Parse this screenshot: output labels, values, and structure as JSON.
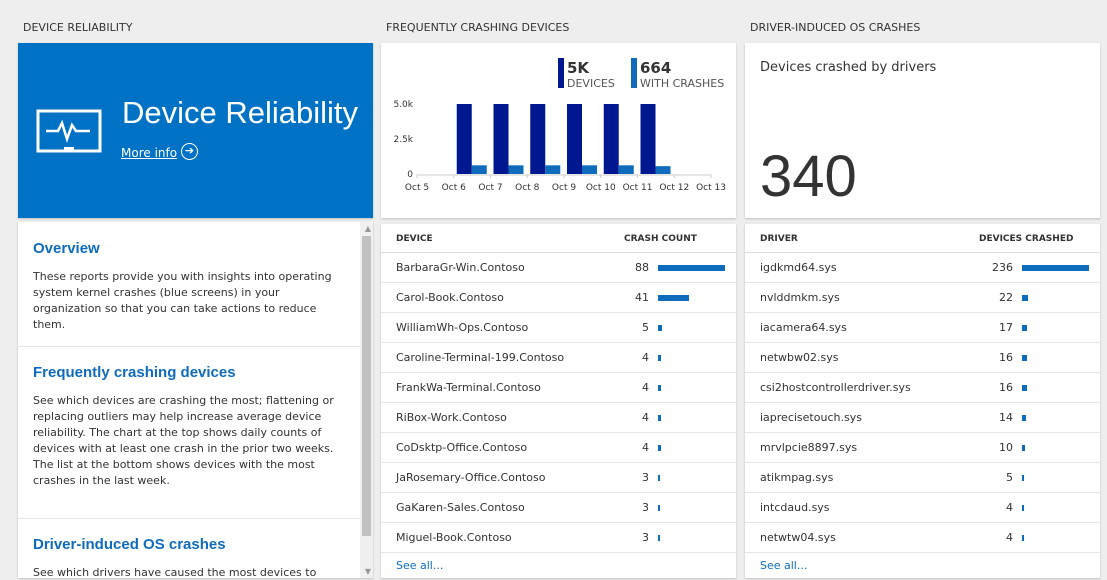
{
  "sections": {
    "reliability": "DEVICE RELIABILITY",
    "frequent": "FREQUENTLY CRASHING DEVICES",
    "driver": "DRIVER-INDUCED OS CRASHES"
  },
  "hero": {
    "title": "Device Reliability",
    "more_info": "More info",
    "icon": "monitor-pulse-icon",
    "color": "#0072c6"
  },
  "overview": {
    "sections": [
      {
        "title": "Overview",
        "text": "These reports provide you with insights into operating system kernel crashes (blue screens) in your organization so that you can take actions to reduce them."
      },
      {
        "title": "Frequently crashing devices",
        "text": "See which devices are crashing the most; flattening or replacing outliers may help increase average device reliability. The chart at the top shows daily counts of devices with at least one crash in the prior two weeks. The list at the bottom shows devices with the most crashes in the last week."
      },
      {
        "title": "Driver-induced OS crashes",
        "text": "See which drivers have caused the most devices to crash in"
      }
    ]
  },
  "chart_data": {
    "type": "bar",
    "categories": [
      "Oct 5",
      "Oct 6",
      "Oct 7",
      "Oct 8",
      "Oct 9",
      "Oct 10",
      "Oct 11",
      "Oct 12",
      "Oct 13"
    ],
    "y_ticks": [
      "0",
      "2.5k",
      "5.0k"
    ],
    "ylim": [
      0,
      5000
    ],
    "legend": [
      {
        "value": "5K",
        "label": "DEVICES",
        "color": "#00188f"
      },
      {
        "value": "664",
        "label": "WITH CRASHES",
        "color": "#0f6cbd"
      }
    ],
    "series": [
      {
        "name": "DEVICES",
        "color": "#00188f",
        "values": [
          0,
          5000,
          5000,
          5000,
          5000,
          5000,
          5000,
          0,
          0
        ]
      },
      {
        "name": "WITH CRASHES",
        "color": "#0f6cbd",
        "values": [
          0,
          620,
          620,
          620,
          620,
          620,
          560,
          0,
          0
        ]
      }
    ]
  },
  "drivers_card": {
    "label": "Devices crashed by drivers",
    "value": "340"
  },
  "devices_table": {
    "col1": "DEVICE",
    "col2": "CRASH COUNT",
    "see_all": "See all...",
    "rows": [
      {
        "name": "BarbaraGr-Win.Contoso",
        "count": 88
      },
      {
        "name": "Carol-Book.Contoso",
        "count": 41
      },
      {
        "name": "WilliamWh-Ops.Contoso",
        "count": 5
      },
      {
        "name": "Caroline-Terminal-199.Contoso",
        "count": 4
      },
      {
        "name": "FrankWa-Terminal.Contoso",
        "count": 4
      },
      {
        "name": "RiBox-Work.Contoso",
        "count": 4
      },
      {
        "name": "CoDsktp-Office.Contoso",
        "count": 4
      },
      {
        "name": "JaRosemary-Office.Contoso",
        "count": 3
      },
      {
        "name": "GaKaren-Sales.Contoso",
        "count": 3
      },
      {
        "name": "Miguel-Book.Contoso",
        "count": 3
      }
    ]
  },
  "drivers_table": {
    "col1": "DRIVER",
    "col2": "DEVICES CRASHED",
    "see_all": "See all...",
    "rows": [
      {
        "name": "igdkmd64.sys",
        "count": 236
      },
      {
        "name": "nvlddmkm.sys",
        "count": 22
      },
      {
        "name": "iacamera64.sys",
        "count": 17
      },
      {
        "name": "netwbw02.sys",
        "count": 16
      },
      {
        "name": "csi2hostcontrollerdriver.sys",
        "count": 16
      },
      {
        "name": "iaprecisetouch.sys",
        "count": 14
      },
      {
        "name": "mrvlpcie8897.sys",
        "count": 10
      },
      {
        "name": "atikmpag.sys",
        "count": 5
      },
      {
        "name": "intcdaud.sys",
        "count": 4
      },
      {
        "name": "netwtw04.sys",
        "count": 4
      }
    ]
  }
}
